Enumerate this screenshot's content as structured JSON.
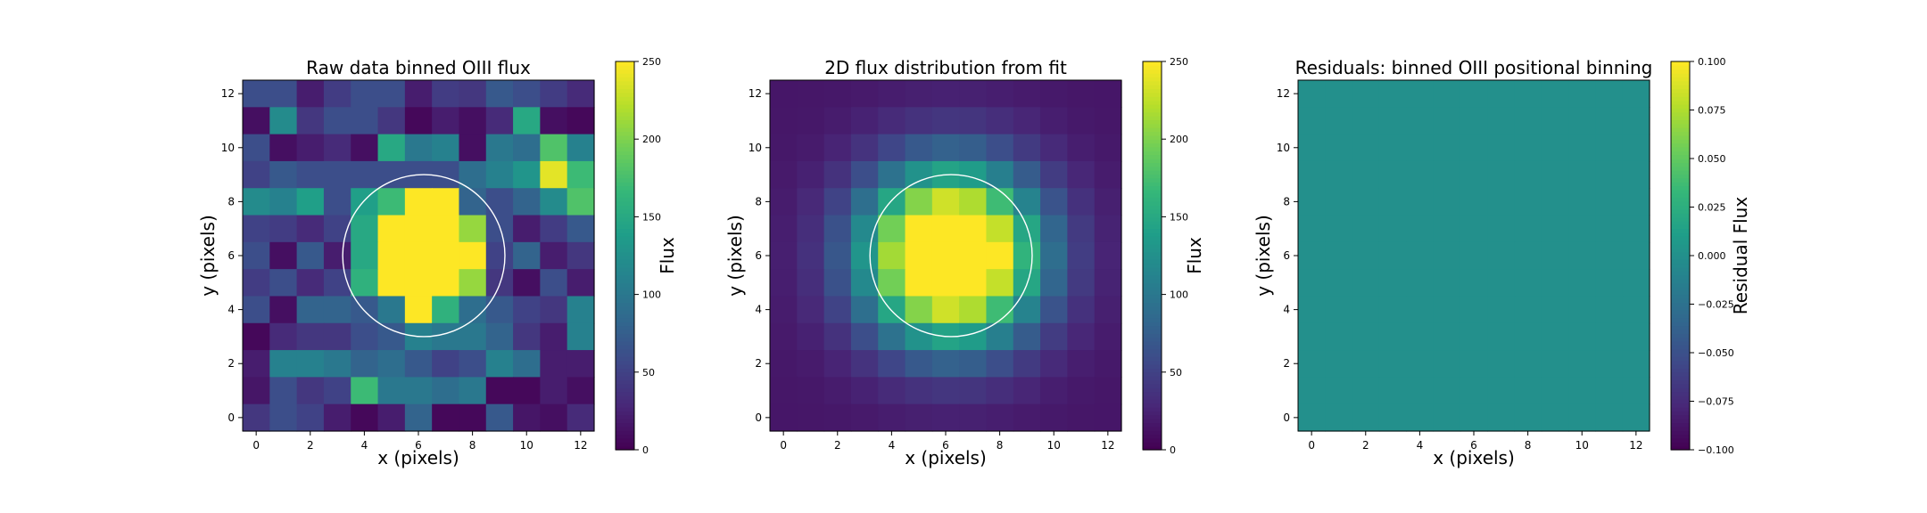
{
  "colors": {
    "viridis": [
      "#440154",
      "#482878",
      "#3e4989",
      "#31688e",
      "#26828e",
      "#1f9e89",
      "#35b779",
      "#6ece58",
      "#b5de2b",
      "#fde725"
    ],
    "circle": "#ffffff"
  },
  "chart_data": [
    {
      "type": "heatmap",
      "title": "Raw data binned OIII flux",
      "xlabel": "x (pixels)",
      "ylabel": "y (pixels)",
      "colorbar_label": "Flux",
      "xlim": [
        -0.5,
        12.5
      ],
      "ylim": [
        -0.5,
        12.5
      ],
      "xticks": [
        0,
        2,
        4,
        6,
        8,
        10,
        12
      ],
      "yticks": [
        0,
        2,
        4,
        6,
        8,
        10,
        12
      ],
      "vmin": 0,
      "vmax": 250,
      "colorbar_ticks": [
        "0",
        "50",
        "100",
        "150",
        "200",
        "250"
      ],
      "circle": {
        "cx": 6.2,
        "cy": 6.0,
        "r": 3.0
      },
      "grid": [
        [
          60,
          60,
          20,
          45,
          60,
          60,
          20,
          45,
          40,
          70,
          60,
          45,
          30
        ],
        [
          10,
          120,
          40,
          60,
          60,
          40,
          5,
          20,
          10,
          30,
          150,
          10,
          5
        ],
        [
          60,
          10,
          20,
          30,
          10,
          150,
          100,
          110,
          10,
          100,
          90,
          180,
          110
        ],
        [
          50,
          70,
          60,
          60,
          60,
          60,
          60,
          60,
          90,
          110,
          130,
          240,
          170
        ],
        [
          120,
          110,
          140,
          60,
          140,
          170,
          250,
          250,
          80,
          60,
          80,
          120,
          180
        ],
        [
          50,
          45,
          30,
          50,
          150,
          250,
          250,
          250,
          210,
          60,
          20,
          45,
          70
        ],
        [
          60,
          10,
          70,
          20,
          150,
          250,
          250,
          250,
          250,
          50,
          80,
          20,
          40
        ],
        [
          45,
          60,
          30,
          50,
          160,
          250,
          250,
          250,
          210,
          40,
          10,
          60,
          20
        ],
        [
          60,
          10,
          80,
          80,
          70,
          100,
          250,
          160,
          90,
          70,
          50,
          40,
          110
        ],
        [
          5,
          30,
          40,
          40,
          60,
          70,
          110,
          100,
          100,
          80,
          40,
          20,
          110
        ],
        [
          20,
          110,
          110,
          100,
          80,
          90,
          70,
          50,
          60,
          110,
          90,
          20,
          20
        ],
        [
          15,
          60,
          40,
          50,
          170,
          100,
          100,
          90,
          100,
          5,
          5,
          20,
          10
        ],
        [
          40,
          60,
          50,
          20,
          5,
          20,
          80,
          5,
          5,
          70,
          15,
          10,
          30
        ]
      ]
    },
    {
      "type": "heatmap",
      "title": "2D flux distribution from fit",
      "xlabel": "x (pixels)",
      "ylabel": "y (pixels)",
      "colorbar_label": "Flux",
      "xlim": [
        -0.5,
        12.5
      ],
      "ylim": [
        -0.5,
        12.5
      ],
      "xticks": [
        0,
        2,
        4,
        6,
        8,
        10,
        12
      ],
      "yticks": [
        0,
        2,
        4,
        6,
        8,
        10,
        12
      ],
      "vmin": 0,
      "vmax": 250,
      "colorbar_ticks": [
        "0",
        "50",
        "100",
        "150",
        "200",
        "250"
      ],
      "circle": {
        "cx": 6.2,
        "cy": 6.0,
        "r": 3.0
      },
      "gaussian_fit": {
        "amplitude": 330,
        "x0": 6.2,
        "y0": 6.0,
        "sigma": 2.2,
        "offset": 15
      }
    },
    {
      "type": "heatmap",
      "title": "Residuals: binned OIII positional binning",
      "xlabel": "x (pixels)",
      "ylabel": "y (pixels)",
      "colorbar_label": "Residual Flux",
      "xlim": [
        -0.5,
        12.5
      ],
      "ylim": [
        -0.5,
        12.5
      ],
      "xticks": [
        0,
        2,
        4,
        6,
        8,
        10,
        12
      ],
      "yticks": [
        0,
        2,
        4,
        6,
        8,
        10,
        12
      ],
      "vmin": -0.1,
      "vmax": 0.1,
      "colorbar_ticks": [
        "−0.100",
        "−0.075",
        "−0.050",
        "−0.025",
        "0.000",
        "0.025",
        "0.050",
        "0.075",
        "0.100"
      ],
      "constant_value": 0.0
    }
  ]
}
